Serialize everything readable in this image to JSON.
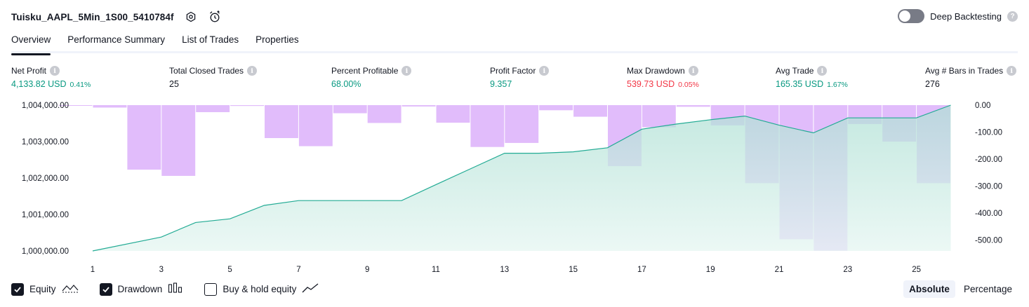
{
  "header": {
    "strategy_name": "Tuisku_AAPL_5Min_1S00_5410784f",
    "settings_icon": "gear-icon",
    "alert_icon": "alarm-clock-icon"
  },
  "deep_backtesting": {
    "label": "Deep Backtesting",
    "enabled": false,
    "help": "?"
  },
  "tabs": [
    {
      "label": "Overview",
      "active": true
    },
    {
      "label": "Performance Summary",
      "active": false
    },
    {
      "label": "List of Trades",
      "active": false
    },
    {
      "label": "Properties",
      "active": false
    }
  ],
  "metrics": {
    "net_profit": {
      "label": "Net Profit",
      "value": "4,133.82 USD",
      "pct": "0.41%"
    },
    "total_closed_trades": {
      "label": "Total Closed Trades",
      "value": "25"
    },
    "percent_profitable": {
      "label": "Percent Profitable",
      "value": "68.00%"
    },
    "profit_factor": {
      "label": "Profit Factor",
      "value": "9.357"
    },
    "max_drawdown": {
      "label": "Max Drawdown",
      "value": "539.73 USD",
      "pct": "0.05%"
    },
    "avg_trade": {
      "label": "Avg Trade",
      "value": "165.35 USD",
      "pct": "1.67%"
    },
    "avg_bars": {
      "label": "Avg # Bars in Trades",
      "value": "276"
    },
    "info_glyph": "i"
  },
  "chart_data": {
    "type": "area",
    "x": [
      1,
      2,
      3,
      4,
      5,
      6,
      7,
      8,
      9,
      10,
      11,
      12,
      13,
      14,
      15,
      16,
      17,
      18,
      19,
      20,
      21,
      22,
      23,
      24,
      25,
      26
    ],
    "x_ticks": [
      "1",
      "3",
      "5",
      "7",
      "9",
      "11",
      "13",
      "15",
      "17",
      "19",
      "21",
      "23",
      "25"
    ],
    "equity": [
      1000000,
      1000380,
      1000780,
      1000880,
      1001250,
      1001380,
      1001380,
      1001380,
      1001380,
      1001820,
      1002250,
      1002680,
      1002680,
      1002720,
      1002830,
      1003340,
      1003480,
      1003600,
      1003700,
      1003450,
      1003240,
      1003650,
      1003650,
      1003650,
      1004000
    ],
    "equity_x": [
      1,
      3,
      4,
      5,
      6,
      7,
      8,
      9,
      10,
      11,
      12,
      13,
      14,
      15,
      16,
      17,
      18,
      19,
      20,
      21,
      22,
      23,
      24,
      25,
      26
    ],
    "drawdown": [
      -1,
      -9,
      -239,
      -262,
      -26,
      -3,
      -122,
      -152,
      -30,
      -66,
      -5,
      -65,
      -155,
      -140,
      -19,
      -43,
      -226,
      -82,
      -6,
      -75,
      -289,
      -497,
      -539,
      -70,
      -135,
      -289
    ],
    "equity_yticks": [
      "1,000,000.00",
      "1,001,000.00",
      "1,002,000.00",
      "1,003,000.00",
      "1,004,000.00"
    ],
    "equity_ylim": [
      1000000,
      1004000
    ],
    "drawdown_yticks": [
      "0.00",
      "-100.00",
      "-200.00",
      "-300.00",
      "-400.00",
      "-500.00"
    ],
    "drawdown_ylim": [
      -540,
      0
    ],
    "colors": {
      "equity_line": "#22ab94",
      "equity_fill": "#c9ece4",
      "drawdown_bar": "#e1bcfb"
    }
  },
  "legend": {
    "equity": {
      "label": "Equity",
      "checked": true
    },
    "drawdown": {
      "label": "Drawdown",
      "checked": true
    },
    "buy_hold": {
      "label": "Buy & hold equity",
      "checked": false
    }
  },
  "mode": {
    "absolute": "Absolute",
    "percentage": "Percentage",
    "selected": "Absolute"
  }
}
